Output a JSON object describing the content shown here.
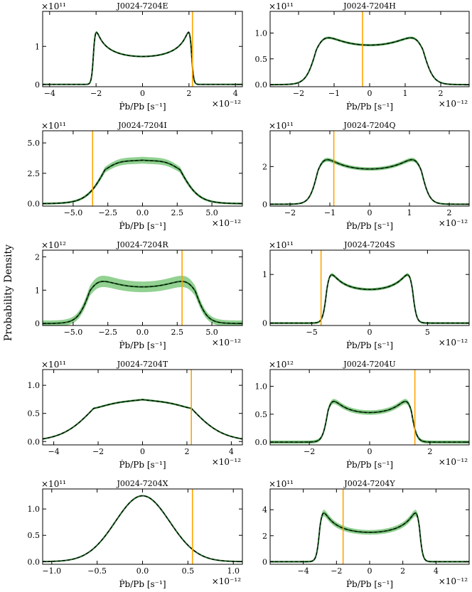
{
  "figure": {
    "ylabel": "Probability Density",
    "colors": {
      "band": "#7fc97f",
      "line": "#1b5e20",
      "dash": "#000000",
      "marker": "#ffa500",
      "axis": "#000000"
    }
  },
  "chart_data": [
    {
      "type": "line",
      "title": "J0024-7204E",
      "xlabel": "Ṗb/Pb [s⁻¹]",
      "x_exponent": "×10⁻¹²",
      "y_exponent": "×10¹¹",
      "xlim": [
        -4.3,
        4.3
      ],
      "ylim": [
        -0.06,
        1.92
      ],
      "xticks": [
        -4,
        -2,
        0,
        2,
        4
      ],
      "xtick_labels": [
        "−4",
        "−2",
        "0",
        "2",
        "4"
      ],
      "yticks": [
        0,
        1
      ],
      "ytick_labels": [
        "0",
        "1"
      ],
      "shape": {
        "kind": "orbit",
        "A": 2.1,
        "plateau": 0.8,
        "peak": 1.85,
        "edge": 0.1
      },
      "band": 0.015,
      "marker_x": 2.15
    },
    {
      "type": "line",
      "title": "J0024-7204H",
      "xlabel": "Ṗb/Pb [s⁻¹]",
      "x_exponent": "×10⁻¹²",
      "y_exponent": "×10¹¹",
      "xlim": [
        -2.8,
        2.8
      ],
      "ylim": [
        -0.04,
        1.42
      ],
      "xticks": [
        -2,
        -1,
        0,
        1,
        2
      ],
      "xtick_labels": [
        "−2",
        "−1",
        "0",
        "1",
        "2"
      ],
      "yticks": [
        0,
        0.5,
        1.0
      ],
      "ytick_labels": [
        "0.0",
        "0.5",
        "1.0"
      ],
      "shape": {
        "kind": "orbit",
        "A": 1.5,
        "plateau": 0.93,
        "peak": 1.35,
        "edge": 0.32
      },
      "band": 0.015,
      "marker_x": -0.2
    },
    {
      "type": "line",
      "title": "J0024-7204I",
      "xlabel": "Ṗb/Pb [s⁻¹]",
      "x_exponent": "×10⁻¹²",
      "y_exponent": "×10¹¹",
      "xlim": [
        -7.2,
        7.2
      ],
      "ylim": [
        -0.2,
        6.0
      ],
      "xticks": [
        -5,
        -2.5,
        0,
        2.5,
        5
      ],
      "xtick_labels": [
        "−5.0",
        "−2.5",
        "0.0",
        "2.5",
        "5.0"
      ],
      "yticks": [
        0,
        2.5,
        5.0
      ],
      "ytick_labels": [
        "0.0",
        "2.5",
        "5.0"
      ],
      "shape": {
        "kind": "orbit",
        "A": 2.7,
        "plateau": 4.8,
        "peak": 5.6,
        "edge": 1.5
      },
      "band": 0.08,
      "marker_x": -3.6
    },
    {
      "type": "line",
      "title": "J0024-7204Q",
      "xlabel": "Ṗb/Pb [s⁻¹]",
      "x_exponent": "×10⁻¹²",
      "y_exponent": "×10¹¹",
      "xlim": [
        -2.5,
        2.5
      ],
      "ylim": [
        -0.1,
        3.9
      ],
      "xticks": [
        -2,
        -1,
        0,
        1,
        2
      ],
      "xtick_labels": [
        "−2",
        "−1",
        "0",
        "1",
        "2"
      ],
      "yticks": [
        0,
        2
      ],
      "ytick_labels": [
        "0",
        "2"
      ],
      "shape": {
        "kind": "orbit",
        "A": 1.3,
        "plateau": 2.2,
        "peak": 3.55,
        "edge": 0.23
      },
      "band": 0.04,
      "marker_x": -0.9
    },
    {
      "type": "line",
      "title": "J0024-7204R",
      "xlabel": "Ṗb/Pb [s⁻¹]",
      "x_exponent": "×10⁻¹²",
      "y_exponent": "×10¹²",
      "xlim": [
        -7.2,
        7.2
      ],
      "ylim": [
        -0.06,
        2.2
      ],
      "xticks": [
        -5,
        -2.5,
        0,
        2.5,
        5
      ],
      "xtick_labels": [
        "−5.0",
        "−2.5",
        "0.0",
        "2.5",
        "5.0"
      ],
      "yticks": [
        0,
        1,
        2
      ],
      "ytick_labels": [
        "0",
        "1",
        "2"
      ],
      "shape": {
        "kind": "orbit",
        "A": 3.8,
        "plateau": 1.33,
        "peak": 1.95,
        "edge": 0.95
      },
      "band": 0.09,
      "marker_x": 2.85
    },
    {
      "type": "line",
      "title": "J0024-7204S",
      "xlabel": "Ṗb/Pb [s⁻¹]",
      "x_exponent": "×10⁻¹²",
      "y_exponent": "×10¹¹",
      "xlim": [
        -8.6,
        8.6
      ],
      "ylim": [
        -0.05,
        1.5
      ],
      "xticks": [
        -5,
        0,
        5
      ],
      "xtick_labels": [
        "−5",
        "0",
        "5"
      ],
      "yticks": [
        0,
        1
      ],
      "ytick_labels": [
        "0",
        "1"
      ],
      "shape": {
        "kind": "orbit",
        "A": 3.7,
        "plateau": 0.8,
        "peak": 1.38,
        "edge": 0.38
      },
      "band": 0.02,
      "marker_x": -4.2
    },
    {
      "type": "line",
      "title": "J0024-7204T",
      "xlabel": "Ṗb/Pb [s⁻¹]",
      "x_exponent": "×10⁻¹²",
      "y_exponent": "×10¹¹",
      "xlim": [
        -4.5,
        4.5
      ],
      "ylim": [
        -0.06,
        1.28
      ],
      "xticks": [
        -4,
        -2,
        0,
        2,
        4
      ],
      "xtick_labels": [
        "−4",
        "−2",
        "0",
        "2",
        "4"
      ],
      "yticks": [
        0,
        0.5,
        1.0
      ],
      "ytick_labels": [
        "0.0",
        "0.5",
        "1.0"
      ],
      "shape": {
        "kind": "orbit",
        "A": 2.2,
        "plateau": 1.04,
        "peak": 1.18,
        "edge": 1.6
      },
      "band": 0.012,
      "marker_x": 2.2
    },
    {
      "type": "line",
      "title": "J0024-7204U",
      "xlabel": "Ṗb/Pb [s⁻¹]",
      "x_exponent": "×10⁻¹²",
      "y_exponent": "×10¹²",
      "xlim": [
        -3.3,
        3.3
      ],
      "ylim": [
        -0.05,
        1.3
      ],
      "xticks": [
        -2,
        0,
        2
      ],
      "xtick_labels": [
        "−2",
        "0",
        "2"
      ],
      "yticks": [
        0,
        0.5,
        1.0
      ],
      "ytick_labels": [
        "0.0",
        "0.5",
        "1.0"
      ],
      "shape": {
        "kind": "orbit",
        "A": 1.38,
        "plateau": 0.6,
        "peak": 1.13,
        "edge": 0.2
      },
      "band": 0.03,
      "marker_x": 1.5
    },
    {
      "type": "line",
      "title": "J0024-7204X",
      "xlabel": "Ṗb/Pb [s⁻¹]",
      "x_exponent": "×10⁻¹²",
      "y_exponent": "×10¹¹",
      "xlim": [
        -1.1,
        1.1
      ],
      "ylim": [
        -0.05,
        1.38
      ],
      "xticks": [
        -1,
        -0.5,
        0,
        0.5,
        1
      ],
      "xtick_labels": [
        "−1.0",
        "−0.5",
        "0.0",
        "0.5",
        "1.0"
      ],
      "yticks": [
        0,
        0.5,
        1.0
      ],
      "ytick_labels": [
        "0.0",
        "0.5",
        "1.0"
      ],
      "shape": {
        "kind": "gauss",
        "peak": 1.25,
        "sigma": 0.3
      },
      "band": 0.006,
      "marker_x": 0.55
    },
    {
      "type": "line",
      "title": "J0024-7204Y",
      "xlabel": "Ṗb/Pb [s⁻¹]",
      "x_exponent": "×10⁻¹²",
      "y_exponent": "×10¹¹",
      "xlim": [
        -6.0,
        6.0
      ],
      "ylim": [
        -0.2,
        5.6
      ],
      "xticks": [
        -4,
        -2,
        0,
        2,
        4
      ],
      "xtick_labels": [
        "−4",
        "−2",
        "0",
        "2",
        "4"
      ],
      "yticks": [
        0,
        2,
        4
      ],
      "ytick_labels": [
        "0",
        "2",
        "4"
      ],
      "shape": {
        "kind": "orbit",
        "A": 3.0,
        "plateau": 2.5,
        "peak": 5.3,
        "edge": 0.22
      },
      "band": 0.07,
      "marker_x": -1.6
    }
  ]
}
